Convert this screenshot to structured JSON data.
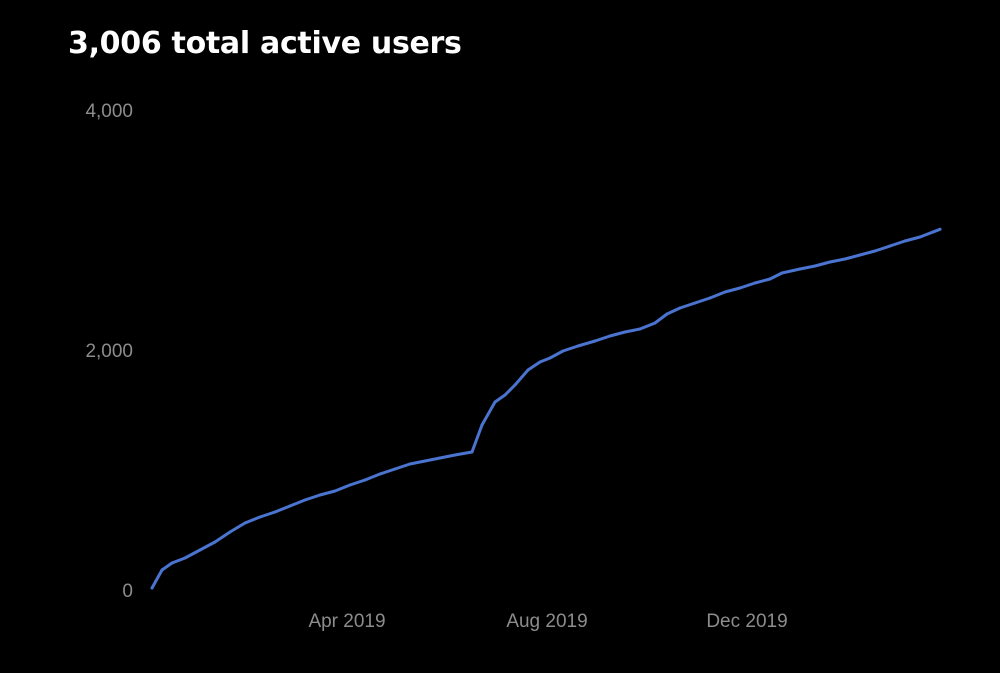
{
  "chart_data": {
    "type": "line",
    "title": "3,006 total active users",
    "xlabel": "",
    "ylabel": "",
    "x_units": "months since Jan 2019",
    "ylim": [
      0,
      4000
    ],
    "xlim": [
      -0.9,
      14.9
    ],
    "grid": false,
    "line_color": "#4a74d0",
    "yticks": [
      {
        "value": 0,
        "label": "0"
      },
      {
        "value": 2000,
        "label": "2,000"
      },
      {
        "value": 4000,
        "label": "4,000"
      }
    ],
    "xticks": [
      {
        "value": 3,
        "label": "Apr 2019"
      },
      {
        "value": 7,
        "label": "Aug 2019"
      },
      {
        "value": 11,
        "label": "Dec 2019"
      }
    ],
    "series": [
      {
        "name": "total active users",
        "x": [
          -0.9,
          -0.7,
          -0.5,
          -0.24,
          0.06,
          0.36,
          0.66,
          0.96,
          1.26,
          1.56,
          1.86,
          2.16,
          2.46,
          2.76,
          3.06,
          3.36,
          3.66,
          3.96,
          4.26,
          4.56,
          4.86,
          5.16,
          5.5,
          5.7,
          5.96,
          6.16,
          6.36,
          6.62,
          6.86,
          7.06,
          7.32,
          7.62,
          7.96,
          8.26,
          8.56,
          8.86,
          9.16,
          9.4,
          9.66,
          9.96,
          10.26,
          10.56,
          10.86,
          11.16,
          11.46,
          11.7,
          12.06,
          12.36,
          12.66,
          12.96,
          13.26,
          13.56,
          13.86,
          14.16,
          14.46,
          14.86
        ],
        "values": [
          17,
          167,
          225,
          267,
          333,
          400,
          483,
          558,
          608,
          650,
          700,
          750,
          792,
          825,
          875,
          917,
          967,
          1008,
          1050,
          1075,
          1100,
          1125,
          1150,
          1375,
          1567,
          1625,
          1708,
          1833,
          1900,
          1933,
          1992,
          2033,
          2075,
          2117,
          2150,
          2175,
          2225,
          2300,
          2350,
          2392,
          2433,
          2483,
          2517,
          2558,
          2592,
          2642,
          2675,
          2700,
          2733,
          2758,
          2792,
          2825,
          2867,
          2908,
          2942,
          3006
        ]
      }
    ]
  }
}
